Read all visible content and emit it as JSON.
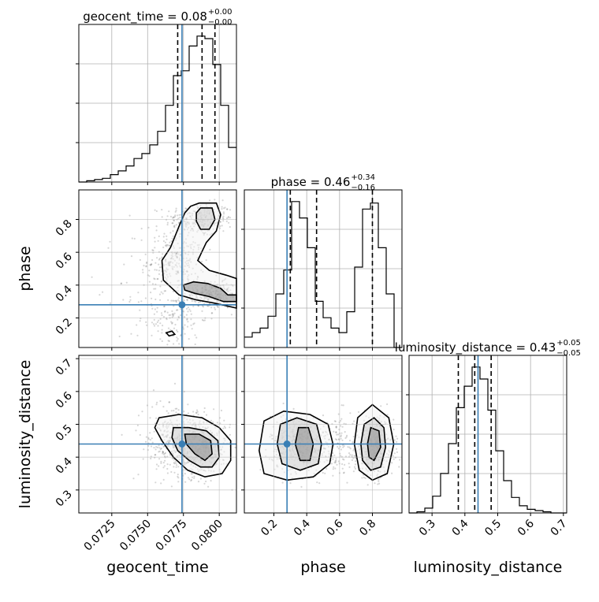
{
  "chart_data": {
    "type": "corner",
    "parameters": [
      "geocent_time",
      "phase",
      "luminosity_distance"
    ],
    "truth_color": "#3a7fb5",
    "grid": true,
    "titles": [
      {
        "param": "geocent_time",
        "text": "geocent_time = 0.08",
        "sup": "+0.00",
        "sub": "−0.00"
      },
      {
        "param": "phase",
        "text": "phase = 0.46",
        "sup": "+0.34",
        "sub": "−0.16"
      },
      {
        "param": "luminosity_distance",
        "text": "luminosity_distance = 0.43",
        "sup": "+0.05",
        "sub": "−0.05"
      }
    ],
    "ranges": {
      "geocent_time": [
        0.0702,
        0.0812
      ],
      "phase": [
        0.02,
        0.98
      ],
      "luminosity_distance": [
        0.23,
        0.71
      ]
    },
    "ticks": {
      "geocent_time": {
        "values": [
          0.0725,
          0.075,
          0.0775,
          0.08
        ],
        "labels": [
          "0.0725",
          "0.0750",
          "0.0775",
          "0.0800"
        ]
      },
      "phase": {
        "values": [
          0.2,
          0.4,
          0.6,
          0.8
        ],
        "labels": [
          "0.2",
          "0.4",
          "0.6",
          "0.8"
        ]
      },
      "luminosity_distance": {
        "values": [
          0.3,
          0.4,
          0.5,
          0.6,
          0.7
        ],
        "labels": [
          "0.3",
          "0.4",
          "0.5",
          "0.6",
          "0.7"
        ]
      }
    },
    "truths": {
      "geocent_time": 0.0774,
      "phase": 0.28,
      "luminosity_distance": 0.44
    },
    "quantiles": {
      "geocent_time": [
        0.0771,
        0.0788,
        0.0797
      ],
      "phase": [
        0.3,
        0.46,
        0.8
      ],
      "luminosity_distance": [
        0.38,
        0.43,
        0.48
      ]
    },
    "histograms": {
      "geocent_time": {
        "bin_edges": [
          0.0702,
          0.07075,
          0.0713,
          0.07185,
          0.0724,
          0.07295,
          0.0735,
          0.07405,
          0.0746,
          0.07515,
          0.0757,
          0.07625,
          0.0768,
          0.07735,
          0.0779,
          0.07845,
          0.079,
          0.07955,
          0.0801,
          0.08065,
          0.0812
        ],
        "counts": [
          0,
          1,
          2,
          3,
          6,
          9,
          13,
          19,
          23,
          30,
          41,
          62,
          86,
          90,
          110,
          118,
          116,
          95,
          62,
          28
        ]
      },
      "phase": {
        "bin_edges": [
          0.02,
          0.068,
          0.116,
          0.164,
          0.212,
          0.26,
          0.308,
          0.356,
          0.404,
          0.452,
          0.5,
          0.548,
          0.596,
          0.644,
          0.692,
          0.74,
          0.788,
          0.836,
          0.884,
          0.932,
          0.98
        ],
        "counts": [
          7,
          10,
          13,
          21,
          36,
          52,
          98,
          87,
          67,
          31,
          20,
          13,
          10,
          24,
          54,
          93,
          97,
          67,
          36,
          0
        ]
      },
      "luminosity_distance": {
        "bin_edges": [
          0.23,
          0.254,
          0.278,
          0.302,
          0.326,
          0.35,
          0.374,
          0.398,
          0.422,
          0.446,
          0.47,
          0.494,
          0.518,
          0.542,
          0.566,
          0.59,
          0.614,
          0.638,
          0.662,
          0.686,
          0.71
        ],
        "counts": [
          0,
          1,
          4,
          14,
          33,
          58,
          88,
          106,
          122,
          112,
          86,
          52,
          27,
          13,
          6,
          3,
          2,
          1,
          0,
          0
        ]
      }
    },
    "density_2d": {
      "phase_vs_geocent_time": {
        "contours": [
          [
            [
              0.0786,
              0.9
            ],
            [
              0.0798,
              0.9
            ],
            [
              0.0801,
              0.83
            ],
            [
              0.0798,
              0.73
            ],
            [
              0.0791,
              0.66
            ],
            [
              0.0785,
              0.55
            ],
            [
              0.0793,
              0.49
            ],
            [
              0.0805,
              0.46
            ],
            [
              0.0812,
              0.44
            ],
            [
              0.0812,
              0.26
            ],
            [
              0.0797,
              0.29
            ],
            [
              0.0784,
              0.31
            ],
            [
              0.0772,
              0.34
            ],
            [
              0.0761,
              0.43
            ],
            [
              0.076,
              0.55
            ],
            [
              0.0766,
              0.63
            ],
            [
              0.0772,
              0.76
            ],
            [
              0.0776,
              0.84
            ],
            [
              0.078,
              0.88
            ],
            [
              0.0786,
              0.9
            ]
          ],
          [
            [
              0.0787,
              0.87
            ],
            [
              0.0795,
              0.87
            ],
            [
              0.0797,
              0.8
            ],
            [
              0.0793,
              0.74
            ],
            [
              0.0787,
              0.74
            ],
            [
              0.0784,
              0.79
            ],
            [
              0.0784,
              0.84
            ],
            [
              0.0787,
              0.87
            ]
          ],
          [
            [
              0.0775,
              0.4
            ],
            [
              0.0782,
              0.42
            ],
            [
              0.0792,
              0.41
            ],
            [
              0.0801,
              0.38
            ],
            [
              0.0806,
              0.34
            ],
            [
              0.0812,
              0.34
            ],
            [
              0.0812,
              0.3
            ],
            [
              0.0803,
              0.3
            ],
            [
              0.0793,
              0.33
            ],
            [
              0.0783,
              0.35
            ],
            [
              0.0776,
              0.37
            ],
            [
              0.0775,
              0.4
            ]
          ],
          [
            [
              0.0763,
              0.11
            ],
            [
              0.0767,
              0.12
            ],
            [
              0.0769,
              0.1
            ],
            [
              0.0765,
              0.09
            ],
            [
              0.0763,
              0.11
            ]
          ]
        ]
      },
      "luminosity_distance_vs_geocent_time": {
        "contours": [
          [
            [
              0.0758,
              0.52
            ],
            [
              0.0772,
              0.53
            ],
            [
              0.0788,
              0.52
            ],
            [
              0.08,
              0.49
            ],
            [
              0.0808,
              0.45
            ],
            [
              0.0808,
              0.39
            ],
            [
              0.0802,
              0.35
            ],
            [
              0.079,
              0.34
            ],
            [
              0.0778,
              0.36
            ],
            [
              0.0768,
              0.4
            ],
            [
              0.076,
              0.45
            ],
            [
              0.0755,
              0.49
            ],
            [
              0.0758,
              0.52
            ]
          ],
          [
            [
              0.0768,
              0.49
            ],
            [
              0.0779,
              0.49
            ],
            [
              0.0791,
              0.48
            ],
            [
              0.0799,
              0.45
            ],
            [
              0.08,
              0.4
            ],
            [
              0.0795,
              0.37
            ],
            [
              0.0787,
              0.37
            ],
            [
              0.0779,
              0.39
            ],
            [
              0.0771,
              0.42
            ],
            [
              0.0767,
              0.46
            ],
            [
              0.0768,
              0.49
            ]
          ],
          [
            [
              0.0776,
              0.47
            ],
            [
              0.0786,
              0.47
            ],
            [
              0.0794,
              0.45
            ],
            [
              0.0795,
              0.41
            ],
            [
              0.079,
              0.39
            ],
            [
              0.0783,
              0.41
            ],
            [
              0.0777,
              0.44
            ],
            [
              0.0776,
              0.47
            ]
          ]
        ]
      },
      "luminosity_distance_vs_phase": {
        "contours": [
          [
            [
              0.11,
              0.42
            ],
            [
              0.14,
              0.51
            ],
            [
              0.26,
              0.54
            ],
            [
              0.42,
              0.53
            ],
            [
              0.53,
              0.5
            ],
            [
              0.56,
              0.44
            ],
            [
              0.54,
              0.38
            ],
            [
              0.44,
              0.34
            ],
            [
              0.28,
              0.33
            ],
            [
              0.14,
              0.35
            ],
            [
              0.11,
              0.42
            ]
          ],
          [
            [
              0.22,
              0.44
            ],
            [
              0.24,
              0.5
            ],
            [
              0.34,
              0.52
            ],
            [
              0.46,
              0.5
            ],
            [
              0.49,
              0.44
            ],
            [
              0.47,
              0.38
            ],
            [
              0.36,
              0.36
            ],
            [
              0.25,
              0.38
            ],
            [
              0.22,
              0.44
            ]
          ],
          [
            [
              0.33,
              0.44
            ],
            [
              0.35,
              0.49
            ],
            [
              0.41,
              0.49
            ],
            [
              0.44,
              0.44
            ],
            [
              0.42,
              0.39
            ],
            [
              0.36,
              0.39
            ],
            [
              0.33,
              0.44
            ]
          ],
          [
            [
              0.69,
              0.44
            ],
            [
              0.71,
              0.52
            ],
            [
              0.8,
              0.56
            ],
            [
              0.9,
              0.52
            ],
            [
              0.93,
              0.44
            ],
            [
              0.89,
              0.35
            ],
            [
              0.8,
              0.33
            ],
            [
              0.72,
              0.36
            ],
            [
              0.69,
              0.44
            ]
          ],
          [
            [
              0.73,
              0.44
            ],
            [
              0.75,
              0.5
            ],
            [
              0.81,
              0.52
            ],
            [
              0.87,
              0.49
            ],
            [
              0.88,
              0.43
            ],
            [
              0.85,
              0.37
            ],
            [
              0.79,
              0.36
            ],
            [
              0.74,
              0.39
            ],
            [
              0.73,
              0.44
            ]
          ],
          [
            [
              0.77,
              0.44
            ],
            [
              0.79,
              0.49
            ],
            [
              0.84,
              0.48
            ],
            [
              0.85,
              0.43
            ],
            [
              0.81,
              0.39
            ],
            [
              0.78,
              0.4
            ],
            [
              0.77,
              0.44
            ]
          ]
        ]
      }
    }
  }
}
